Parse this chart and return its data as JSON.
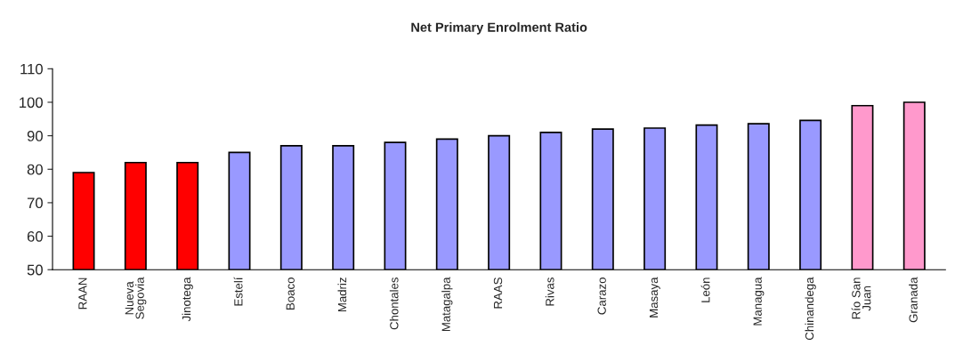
{
  "chart_data": {
    "type": "bar",
    "title": "Net Primary Enrolment Ratio",
    "categories": [
      "RAAN",
      "Nueva\nSegovia",
      "Jinotega",
      "Estelí",
      "Boaco",
      "Madriz",
      "Chontales",
      "Matagalpa",
      "RAAS",
      "Rivas",
      "Carazo",
      "Masaya",
      "León",
      "Managua",
      "Chinandega",
      "Río San\nJuan",
      "Granada"
    ],
    "values": [
      79,
      82,
      82,
      85,
      87,
      87,
      88,
      89,
      90,
      91,
      92,
      92.3,
      93.2,
      93.6,
      94.6,
      99,
      100
    ],
    "colors": [
      "#ff0000",
      "#ff0000",
      "#ff0000",
      "#9999ff",
      "#9999ff",
      "#9999ff",
      "#9999ff",
      "#9999ff",
      "#9999ff",
      "#9999ff",
      "#9999ff",
      "#9999ff",
      "#9999ff",
      "#9999ff",
      "#9999ff",
      "#ff99cc",
      "#ff99cc"
    ],
    "ylim": [
      50,
      110
    ],
    "yticks": [
      50,
      60,
      70,
      80,
      90,
      100,
      110
    ],
    "grid": false,
    "legend": false
  }
}
